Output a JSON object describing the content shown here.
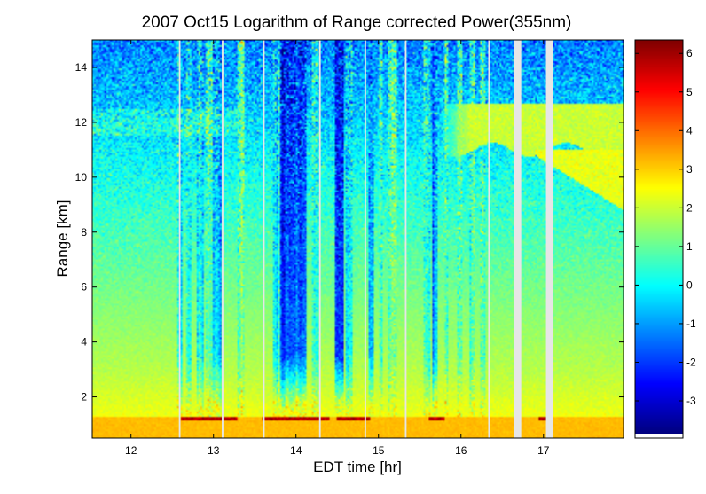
{
  "chart_data": {
    "type": "heatmap",
    "title": "2007 Oct15  Logarithm of Range corrected Power(355nm)",
    "xlabel": "EDT time [hr]",
    "ylabel": "Range [km]",
    "xlim": [
      11.53,
      17.97
    ],
    "ylim": [
      0.5,
      15
    ],
    "x_ticks": [
      12,
      13,
      14,
      15,
      16,
      17
    ],
    "y_ticks": [
      2,
      4,
      6,
      8,
      10,
      12,
      14
    ],
    "colorbar": {
      "colormap": "jet",
      "clim": [
        -3.85,
        6.35
      ],
      "ticks": [
        -3,
        -2,
        -1,
        0,
        1,
        2,
        3,
        4,
        5,
        6
      ]
    },
    "grid": false,
    "legend": "none",
    "missing_data_color": "#e6e6e6",
    "features": {
      "boundary_layer_top_km": 1.25,
      "boundary_layer_value": 3.2,
      "cirrus_layer_km": [
        11.0,
        12.7
      ],
      "cirrus_time_hr": [
        15.75,
        17.97
      ],
      "thin_cirrus_km": [
        11.5,
        12.5
      ],
      "thin_cirrus_time_hr": [
        11.53,
        13.3
      ],
      "descending_cloud_time_hr": [
        16.9,
        17.97
      ],
      "descending_cloud_km_at_end": [
        8.8,
        10.8
      ],
      "data_gaps_hr": [
        [
          12.58,
          12.6
        ],
        [
          13.1,
          13.12
        ],
        [
          13.6,
          13.62
        ],
        [
          14.28,
          14.3
        ],
        [
          14.83,
          14.85
        ],
        [
          15.32,
          15.34
        ],
        [
          16.33,
          16.35
        ],
        [
          16.64,
          16.73
        ],
        [
          17.03,
          17.12
        ]
      ],
      "precip_streaks_hr": [
        [
          12.57,
          12.63,
          -0.5
        ],
        [
          12.66,
          12.74,
          0.3
        ],
        [
          12.8,
          12.88,
          -0.2
        ],
        [
          12.9,
          12.98,
          0.5
        ],
        [
          13.0,
          13.1,
          -1.0
        ],
        [
          13.3,
          13.38,
          0.9
        ],
        [
          13.72,
          13.8,
          -0.3
        ],
        [
          13.8,
          14.12,
          -2.3
        ],
        [
          14.2,
          14.27,
          0.2
        ],
        [
          14.48,
          14.58,
          -2.6
        ],
        [
          14.6,
          14.68,
          0.1
        ],
        [
          14.88,
          14.95,
          -1.2
        ],
        [
          15.0,
          15.05,
          0.6
        ],
        [
          15.12,
          15.22,
          1.0
        ],
        [
          15.55,
          15.62,
          0.4
        ],
        [
          15.65,
          15.72,
          -1.6
        ],
        [
          15.8,
          15.84,
          0.3
        ],
        [
          15.95,
          16.02,
          0.7
        ],
        [
          16.1,
          16.16,
          0.6
        ],
        [
          16.24,
          16.3,
          0.9
        ]
      ],
      "red_bottom_streak_hr": [
        [
          12.6,
          13.3
        ],
        [
          13.6,
          14.4
        ],
        [
          14.5,
          14.9
        ],
        [
          15.6,
          15.8
        ],
        [
          16.95,
          17.05
        ]
      ],
      "red_bottom_value": 5.8
    }
  }
}
